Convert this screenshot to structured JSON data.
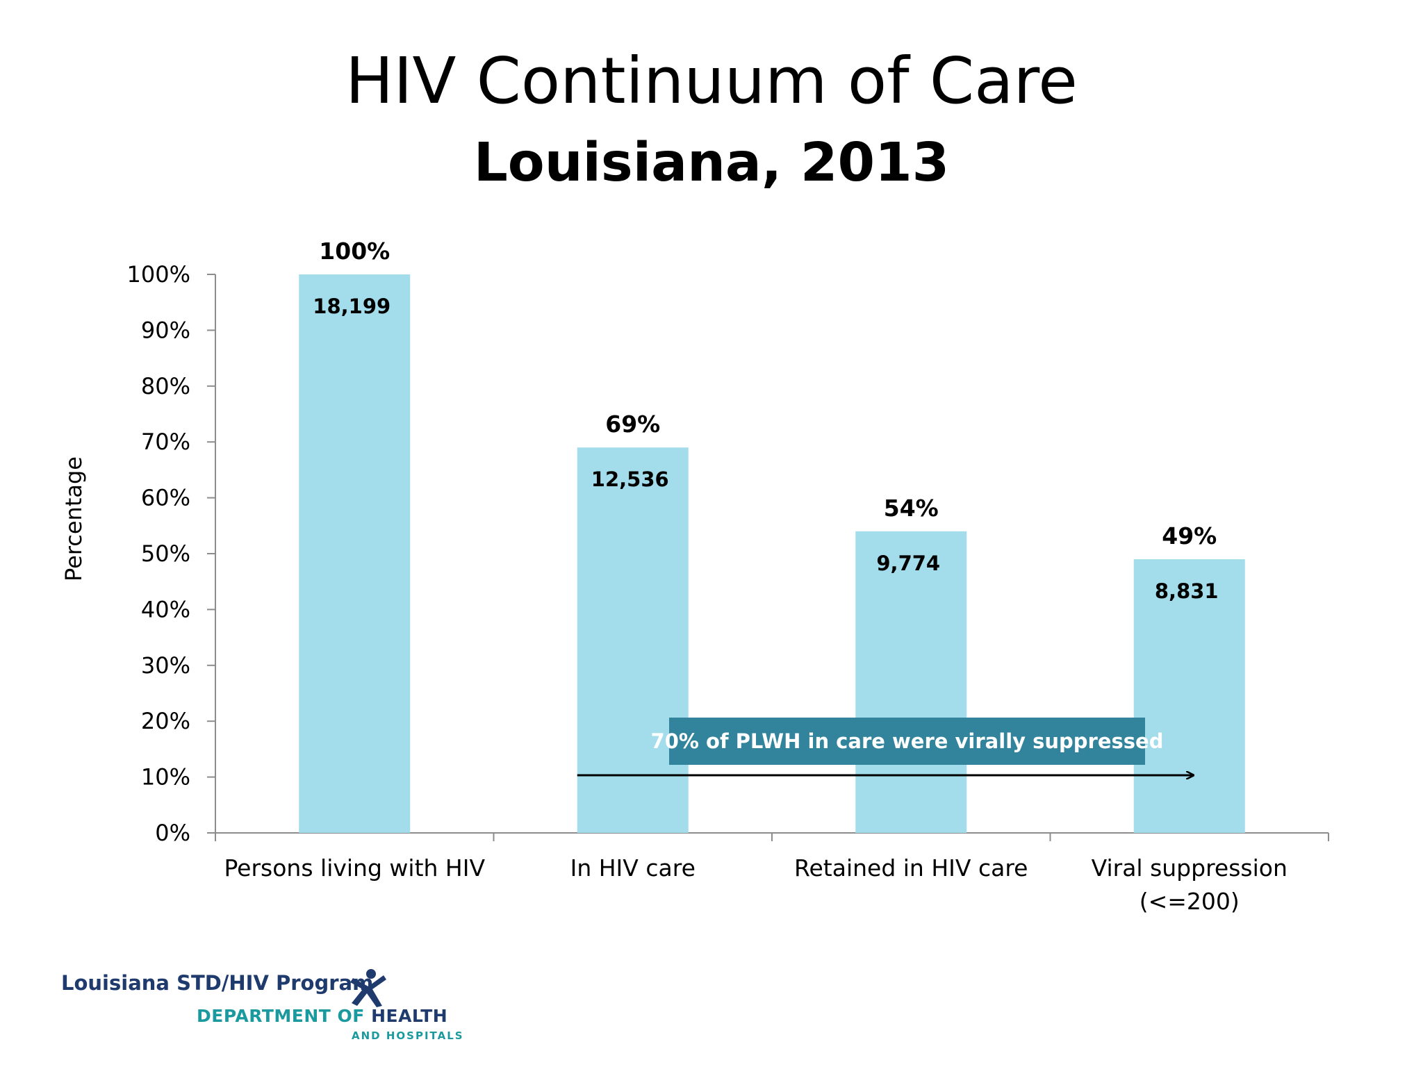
{
  "slide": {
    "title": "HIV Continuum of Care",
    "subtitle": "Louisiana, 2013"
  },
  "chart_data": {
    "type": "bar",
    "categories": [
      "Persons living with HIV",
      "In HIV care",
      "Retained in HIV care",
      "Viral suppression (<=200)"
    ],
    "category_label_lines": [
      [
        "Persons living with HIV"
      ],
      [
        "In HIV care"
      ],
      [
        "Retained in HIV care"
      ],
      [
        "Viral suppression",
        "(<=200)"
      ]
    ],
    "values": [
      100,
      69,
      54,
      49
    ],
    "percent_labels": [
      "100%",
      "69%",
      "54%",
      "49%"
    ],
    "count_labels": [
      "18,199",
      "12,536",
      "9,774",
      "8,831"
    ],
    "ylabel": "Percentage",
    "xlabel": "",
    "ylim": [
      0,
      100
    ],
    "y_ticks": [
      "0%",
      "10%",
      "20%",
      "30%",
      "40%",
      "50%",
      "60%",
      "70%",
      "80%",
      "90%",
      "100%"
    ],
    "grid": false,
    "legend": "none",
    "bar_color": "#a3dcea",
    "annotation": {
      "text": "70% of PLWH in care were virally suppressed",
      "box_color": "#31849b",
      "text_color": "#ffffff",
      "arrow": "from In HIV care to Viral suppression"
    }
  },
  "footer": {
    "program": "Louisiana STD/HIV Program",
    "dept_prefix": "DEPARTMENT OF ",
    "dept_health": "HEALTH",
    "dept_suffix": "AND HOSPITALS",
    "brand_navy": "#1f3a6d",
    "brand_teal": "#1a9a9e"
  }
}
